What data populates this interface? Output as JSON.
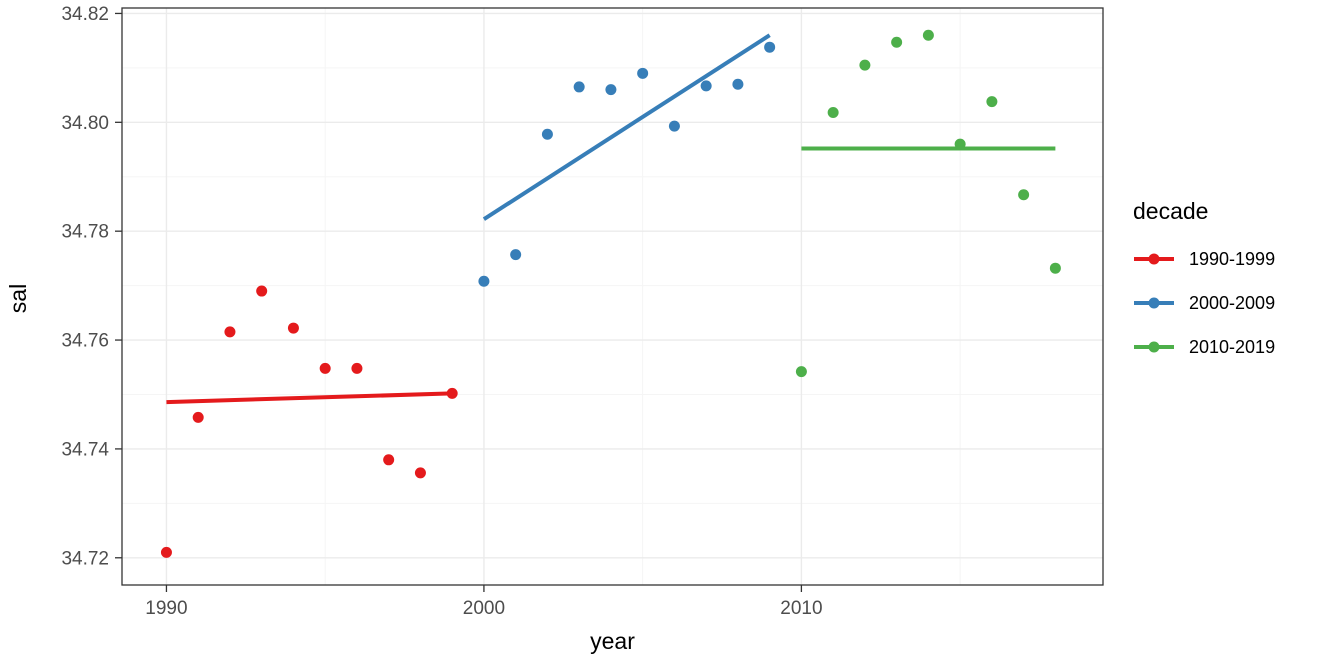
{
  "chart_data": {
    "type": "scatter",
    "title": "",
    "xlabel": "year",
    "ylabel": "sal",
    "legend_title": "decade",
    "legend_position": "right",
    "grid": true,
    "xlim": [
      1988.6,
      2019.5
    ],
    "ylim": [
      34.715,
      34.821
    ],
    "x_ticks": [
      1990,
      2000,
      2010
    ],
    "x_tick_labels": [
      "1990",
      "2000",
      "2010"
    ],
    "x_minor_ticks": [
      1995,
      2005,
      2015
    ],
    "y_ticks": [
      34.72,
      34.74,
      34.76,
      34.78,
      34.8,
      34.82
    ],
    "y_tick_labels": [
      "34.72",
      "34.74",
      "34.76",
      "34.78",
      "34.80",
      "34.82"
    ],
    "y_minor_ticks": [
      34.73,
      34.75,
      34.77,
      34.79,
      34.81
    ],
    "colors": {
      "grid_major": "#EBEBEB",
      "grid_minor": "#F5F5F5",
      "panel_border": "#343434",
      "tick_mark": "#333333",
      "tick_label": "#4D4D4D"
    },
    "series": [
      {
        "name": "1990-1999",
        "color": "#E41A1C",
        "x": [
          1990,
          1991,
          1992,
          1993,
          1994,
          1995,
          1996,
          1997,
          1998,
          1999
        ],
        "y": [
          34.721,
          34.7458,
          34.7615,
          34.769,
          34.7622,
          34.7548,
          34.7548,
          34.738,
          34.7356,
          34.7502
        ],
        "trend": {
          "x": [
            1990,
            1999
          ],
          "y": [
            34.7486,
            34.7502
          ]
        }
      },
      {
        "name": "2000-2009",
        "color": "#377EB8",
        "x": [
          2000,
          2001,
          2002,
          2003,
          2004,
          2005,
          2006,
          2007,
          2008,
          2009
        ],
        "y": [
          34.7708,
          34.7757,
          34.7978,
          34.8065,
          34.806,
          34.809,
          34.7993,
          34.8067,
          34.807,
          34.8138
        ],
        "trend": {
          "x": [
            2000,
            2009
          ],
          "y": [
            34.7822,
            34.816
          ]
        }
      },
      {
        "name": "2010-2019",
        "color": "#4DAF4A",
        "x": [
          2010,
          2011,
          2012,
          2013,
          2014,
          2015,
          2016,
          2017,
          2018
        ],
        "y": [
          34.7542,
          34.8018,
          34.8105,
          34.8147,
          34.816,
          34.796,
          34.8038,
          34.7867,
          34.7732
        ],
        "trend": {
          "x": [
            2010,
            2018
          ],
          "y": [
            34.7952,
            34.7952
          ]
        }
      }
    ]
  }
}
